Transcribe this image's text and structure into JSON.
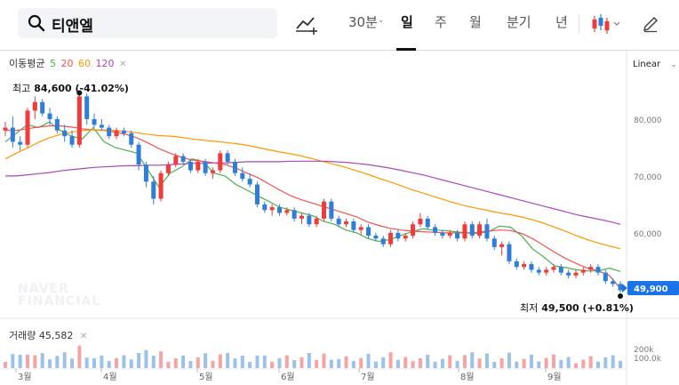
{
  "search": {
    "query": "티앤엘",
    "icon": "search-icon"
  },
  "toolbar": {
    "compare_icon": "trend-plus-icon",
    "periods": [
      "30분",
      "일",
      "주",
      "월",
      "분기",
      "년"
    ],
    "active_period": "일",
    "chart_type_icon": "candlestick-icon",
    "draw_icon": "pencil-icon"
  },
  "indicators": {
    "ma_label": "이동평균",
    "ma_periods": [
      {
        "label": "5",
        "color": "#4caf50"
      },
      {
        "label": "20",
        "color": "#ef5350"
      },
      {
        "label": "60",
        "color": "#ff9800"
      },
      {
        "label": "120",
        "color": "#ab47bc"
      }
    ],
    "close_icon": "close-icon"
  },
  "scale": {
    "label": "Linear"
  },
  "watermark": [
    "NAVER",
    "FINANCIAL"
  ],
  "volume": {
    "label": "거래량",
    "value": "45,582",
    "close_icon": "close-icon"
  },
  "colors": {
    "up": "#ef3b3b",
    "down": "#2f7dd6",
    "bg": "#ffffff",
    "accent": "#1a73e8"
  },
  "chart_data": {
    "type": "candlestick",
    "x_labels": [
      "3월",
      "4월",
      "5월",
      "6월",
      "7월",
      "8월",
      "9월"
    ],
    "y_ticks": [
      "80,000",
      "70,000",
      "60,000"
    ],
    "y_tick_values": [
      80000,
      70000,
      60000
    ],
    "ylim": [
      47000,
      90000
    ],
    "current_price": "49,900",
    "current_value": 49900,
    "high": {
      "label": "최고",
      "value": 84600,
      "text": "84,600 (-41.02%)"
    },
    "low": {
      "label": "최저",
      "value": 49500,
      "text": "49,500 (+0.81%)"
    },
    "series": [
      {
        "name": "5",
        "color": "#4caf50",
        "values": [
          76000,
          77500,
          79000,
          78500,
          79500,
          78000,
          77000,
          76500,
          78500,
          76000,
          75000,
          74500,
          74000,
          71000,
          68000,
          70500,
          71500,
          73000,
          72500,
          70500,
          70000,
          68500,
          67500,
          66500,
          65500,
          64500,
          64000,
          63500,
          63000,
          62000,
          61500,
          60500,
          60000,
          59000,
          58500,
          58800,
          59500,
          60200,
          60700,
          60500,
          60400,
          60200,
          60000,
          59900,
          60200,
          61200,
          61000,
          59500,
          57200,
          55800,
          54200,
          53900,
          53500,
          53300,
          53300,
          53800,
          53200
        ]
      },
      {
        "name": "20",
        "color": "#ef5350",
        "values": [
          78000,
          78000,
          78300,
          78600,
          78800,
          78800,
          78600,
          78300,
          78100,
          78000,
          77700,
          77300,
          76700,
          75800,
          74800,
          74000,
          73300,
          72800,
          72600,
          72300,
          72000,
          71400,
          70500,
          69700,
          68600,
          67500,
          66500,
          65800,
          65200,
          64600,
          64000,
          63400,
          62800,
          61900,
          61300,
          60800,
          60500,
          60300,
          60200,
          60100,
          60000,
          60000,
          60000,
          60100,
          60300,
          60500,
          60400,
          59900,
          59000,
          57800,
          56600,
          55500,
          54600,
          53800,
          53300,
          52500,
          50200
        ]
      },
      {
        "name": "60",
        "color": "#ff9800",
        "values": [
          73000,
          74000,
          74900,
          75900,
          76700,
          77300,
          77700,
          78000,
          78100,
          78100,
          78000,
          77800,
          77600,
          77300,
          77100,
          77000,
          76800,
          76500,
          76300,
          76100,
          75900,
          75700,
          75400,
          75000,
          74600,
          74200,
          73900,
          73500,
          73000,
          72500,
          72000,
          71500,
          70900,
          70300,
          69600,
          69000,
          68300,
          67600,
          67000,
          66400,
          65800,
          65200,
          64700,
          64300,
          63900,
          63500,
          63200,
          62800,
          62300,
          61700,
          61000,
          60300,
          59500,
          58800,
          58200,
          57700,
          57200
        ]
      },
      {
        "name": "120",
        "color": "#ab47bc",
        "values": [
          70000,
          70000,
          70200,
          70400,
          70600,
          70900,
          71100,
          71300,
          71500,
          71600,
          71700,
          71800,
          71800,
          71900,
          71900,
          72000,
          72100,
          72200,
          72200,
          72300,
          72300,
          72400,
          72500,
          72500,
          72500,
          72500,
          72600,
          72600,
          72600,
          72600,
          72500,
          72400,
          72200,
          72000,
          71700,
          71400,
          71000,
          70600,
          70200,
          69700,
          69200,
          68700,
          68200,
          67700,
          67200,
          66700,
          66200,
          65700,
          65200,
          64700,
          64200,
          63700,
          63200,
          62800,
          62400,
          62000,
          61500
        ]
      }
    ],
    "candles": [
      [
        78000,
        79500,
        77000,
        78500
      ],
      [
        78500,
        80500,
        75000,
        76000
      ],
      [
        76000,
        77000,
        74500,
        75500
      ],
      [
        75500,
        82000,
        75000,
        81500
      ],
      [
        81500,
        84000,
        80000,
        83000
      ],
      [
        83000,
        83500,
        80500,
        81000
      ],
      [
        81000,
        82000,
        79000,
        80000
      ],
      [
        80000,
        80500,
        77500,
        78000
      ],
      [
        78000,
        79000,
        76000,
        77000
      ],
      [
        77000,
        78000,
        75000,
        75500
      ],
      [
        75500,
        84600,
        75000,
        84000
      ],
      [
        84000,
        84500,
        79000,
        80000
      ],
      [
        80000,
        81000,
        78500,
        79000
      ],
      [
        79000,
        80000,
        78000,
        78500
      ],
      [
        78500,
        79000,
        76500,
        77000
      ],
      [
        77000,
        78500,
        76500,
        78000
      ],
      [
        78000,
        78500,
        77000,
        77500
      ],
      [
        77500,
        78000,
        75000,
        75500
      ],
      [
        75500,
        76000,
        71000,
        72000
      ],
      [
        72000,
        72500,
        68000,
        69000
      ],
      [
        69000,
        70000,
        65000,
        66000
      ],
      [
        66000,
        71000,
        65500,
        70500
      ],
      [
        70500,
        72500,
        70000,
        72000
      ],
      [
        72000,
        74000,
        71500,
        73500
      ],
      [
        73500,
        74000,
        72000,
        72500
      ],
      [
        72500,
        73000,
        70500,
        71000
      ],
      [
        71000,
        73000,
        70500,
        72500
      ],
      [
        72500,
        73000,
        70000,
        70500
      ],
      [
        70500,
        71500,
        69500,
        71000
      ],
      [
        71000,
        74500,
        70500,
        74000
      ],
      [
        74000,
        74500,
        72000,
        72500
      ],
      [
        72500,
        73000,
        70000,
        70500
      ],
      [
        70500,
        71500,
        69000,
        69500
      ],
      [
        69500,
        70500,
        68000,
        68500
      ],
      [
        68500,
        69000,
        64500,
        65000
      ],
      [
        65000,
        65500,
        63500,
        64000
      ],
      [
        64000,
        65000,
        63000,
        64500
      ],
      [
        64500,
        65000,
        63000,
        63500
      ],
      [
        63500,
        64500,
        63000,
        64000
      ],
      [
        64000,
        64500,
        62000,
        62500
      ],
      [
        62500,
        63500,
        61500,
        63000
      ],
      [
        63000,
        63500,
        61000,
        61500
      ],
      [
        61500,
        63000,
        61000,
        62500
      ],
      [
        62500,
        66000,
        62000,
        65500
      ],
      [
        65500,
        66000,
        62000,
        62500
      ],
      [
        62500,
        63000,
        61000,
        61500
      ],
      [
        61500,
        62500,
        61000,
        62000
      ],
      [
        62000,
        62500,
        60000,
        60500
      ],
      [
        60500,
        61500,
        59500,
        61000
      ],
      [
        61000,
        61500,
        59000,
        59500
      ],
      [
        59500,
        60000,
        58500,
        59000
      ],
      [
        59000,
        59500,
        57500,
        58000
      ],
      [
        58000,
        60500,
        57500,
        60000
      ],
      [
        60000,
        60500,
        58500,
        59000
      ],
      [
        59000,
        60000,
        58500,
        59500
      ],
      [
        59500,
        62000,
        59000,
        61500
      ],
      [
        61500,
        63500,
        61000,
        62500
      ],
      [
        62500,
        63000,
        60500,
        61000
      ],
      [
        61000,
        61500,
        59500,
        60000
      ],
      [
        60000,
        60500,
        59000,
        59500
      ],
      [
        59500,
        60500,
        59000,
        60000
      ],
      [
        60000,
        60500,
        58500,
        59000
      ],
      [
        59000,
        62000,
        58500,
        61500
      ],
      [
        61500,
        62000,
        59000,
        59500
      ],
      [
        59500,
        62000,
        59000,
        61500
      ],
      [
        61500,
        62500,
        58500,
        59000
      ],
      [
        59000,
        59500,
        57000,
        57500
      ],
      [
        57500,
        58500,
        56000,
        58000
      ],
      [
        58000,
        58500,
        54500,
        55000
      ],
      [
        55000,
        55500,
        53500,
        54000
      ],
      [
        54000,
        55000,
        53500,
        54500
      ],
      [
        54500,
        55000,
        53000,
        53500
      ],
      [
        53500,
        54000,
        52500,
        53000
      ],
      [
        53000,
        54000,
        52500,
        53500
      ],
      [
        53500,
        54500,
        53000,
        54000
      ],
      [
        54000,
        54500,
        52500,
        53000
      ],
      [
        53000,
        53500,
        52000,
        52500
      ],
      [
        52500,
        53500,
        52000,
        53000
      ],
      [
        53000,
        54000,
        52500,
        53500
      ],
      [
        53500,
        54500,
        53000,
        54000
      ],
      [
        54000,
        54500,
        52500,
        53000
      ],
      [
        53000,
        53500,
        51000,
        51500
      ],
      [
        51500,
        52000,
        50500,
        51000
      ],
      [
        51000,
        51500,
        49500,
        49900
      ]
    ],
    "volume_ticks": [
      "200k",
      "100.0k"
    ],
    "volume_tick_values": [
      200000,
      100000
    ]
  }
}
